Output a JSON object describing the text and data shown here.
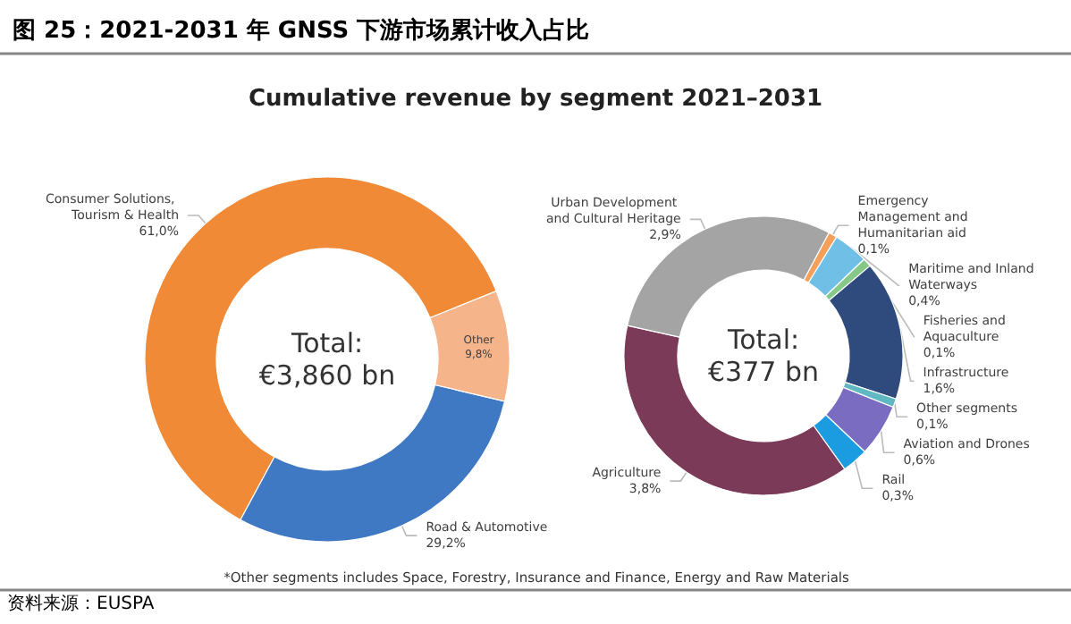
{
  "chart_data": [
    {
      "type": "donut",
      "title": "图 25：2021-2031 年 GNSS 下游市场累计收入占比",
      "subtitle": "Cumulative revenue by segment 2021–2031",
      "categories": [
        "Consumer Solutions, Tourism & Health",
        "Road & Automotive",
        "Other"
      ],
      "values": [
        61.0,
        29.2,
        9.8
      ],
      "value_labels": [
        "61,0%",
        "29,2%",
        "9,8%"
      ],
      "colors": [
        "#f08a36",
        "#3f78c3",
        "#f6b48a"
      ],
      "annotations": [
        "Total:\n€3,860 bn",
        "*Other segments includes Space, Forestry, Insurance and Finance, Energy and Raw Materials",
        "资料来源：EUSPA"
      ]
    },
    {
      "type": "donut",
      "categories": [
        "Emergency Management and Humanitarian aid",
        "Maritime and Inland Waterways",
        "Fisheries and Aquaculture",
        "Infrastructure",
        "Other segments",
        "Aviation and Drones",
        "Rail",
        "Agriculture",
        "Urban Development and Cultural Heritage"
      ],
      "values": [
        0.1,
        0.4,
        0.1,
        1.6,
        0.1,
        0.6,
        0.3,
        3.8,
        2.9
      ],
      "value_labels": [
        "0,1%",
        "0,4%",
        "0,1%",
        "1,6%",
        "0,1%",
        "0,6%",
        "0,3%",
        "3,8%",
        "2,9%"
      ],
      "colors": [
        "#f5a05a",
        "#6fbfe6",
        "#86c888",
        "#2f4a7c",
        "#5fb8c2",
        "#7a6cc0",
        "#1b9be0",
        "#7b3a58",
        "#a4a4a4"
      ],
      "annotations": [
        "Total:\n€377 bn"
      ]
    }
  ]
}
